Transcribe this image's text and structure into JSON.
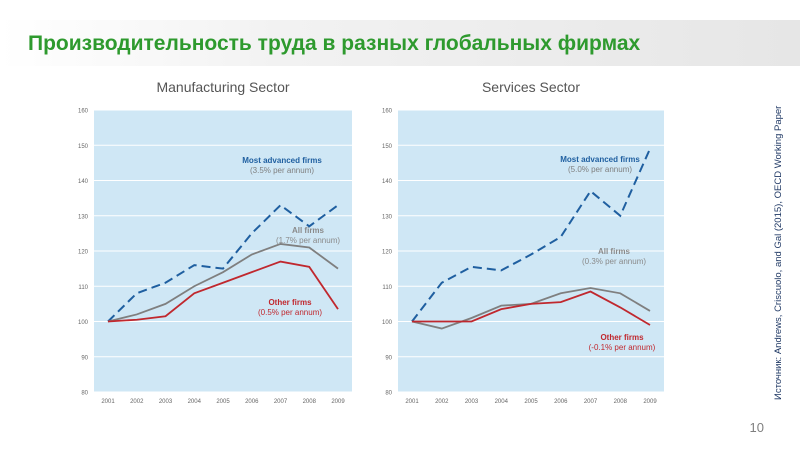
{
  "page": {
    "title": "Производительность труда в разных глобальных фирмах",
    "source": "Источник: Andrews, Criscuolo, and Gal (2015), OECD Working Paper",
    "page_number": "10"
  },
  "colors": {
    "title": "#2e9a2e",
    "plot_bg": "#cfe7f5",
    "most_advanced": "#1f5fa0",
    "all_firms": "#7f7f7f",
    "other_firms": "#c0282e",
    "label_gray": "#8a8a8a"
  },
  "chart_data": [
    {
      "type": "line",
      "title": "Manufacturing Sector",
      "x": [
        "2001",
        "2002",
        "2003",
        "2004",
        "2005",
        "2006",
        "2007",
        "2008",
        "2009"
      ],
      "ylim": [
        80,
        160
      ],
      "yticks": [
        "80",
        "90",
        "100",
        "110",
        "120",
        "130",
        "140",
        "150",
        "160"
      ],
      "series": [
        {
          "name": "Most advanced  firms",
          "sub": "(3.5% per annum)",
          "style": "dashed",
          "color_key": "most_advanced",
          "values": [
            100,
            108,
            111,
            116,
            115,
            125,
            133,
            127,
            133
          ]
        },
        {
          "name": "All firms",
          "sub": "(1.7% per annum)",
          "style": "solid",
          "color_key": "all_firms",
          "values": [
            100,
            102,
            105,
            110,
            114,
            119,
            122,
            121,
            115
          ]
        },
        {
          "name": "Other firms",
          "sub": "(0.5% per annum)",
          "style": "solid",
          "color_key": "other_firms",
          "values": [
            100,
            100.5,
            101.5,
            108,
            111,
            114,
            117,
            115.5,
            103.5
          ]
        }
      ]
    },
    {
      "type": "line",
      "title": "Services Sector",
      "x": [
        "2001",
        "2002",
        "2003",
        "2004",
        "2005",
        "2006",
        "2007",
        "2008",
        "2009"
      ],
      "ylim": [
        80,
        160
      ],
      "yticks": [
        "80",
        "90",
        "100",
        "110",
        "120",
        "130",
        "140",
        "150",
        "160"
      ],
      "series": [
        {
          "name": "Most advanced firms",
          "sub": "(5.0% per annum)",
          "style": "dashed",
          "color_key": "most_advanced",
          "values": [
            100,
            111,
            115.5,
            114.5,
            119,
            124,
            137,
            130,
            149
          ]
        },
        {
          "name": "All firms",
          "sub": "(0.3% per annum)",
          "style": "solid",
          "color_key": "all_firms",
          "values": [
            100,
            98,
            101,
            104.5,
            105,
            108,
            109.5,
            108,
            103
          ]
        },
        {
          "name": "Other firms",
          "sub": "(-0.1% per annum)",
          "style": "solid",
          "color_key": "other_firms",
          "values": [
            100,
            100,
            100,
            103.5,
            105,
            105.5,
            108.5,
            104,
            99
          ]
        }
      ]
    }
  ]
}
